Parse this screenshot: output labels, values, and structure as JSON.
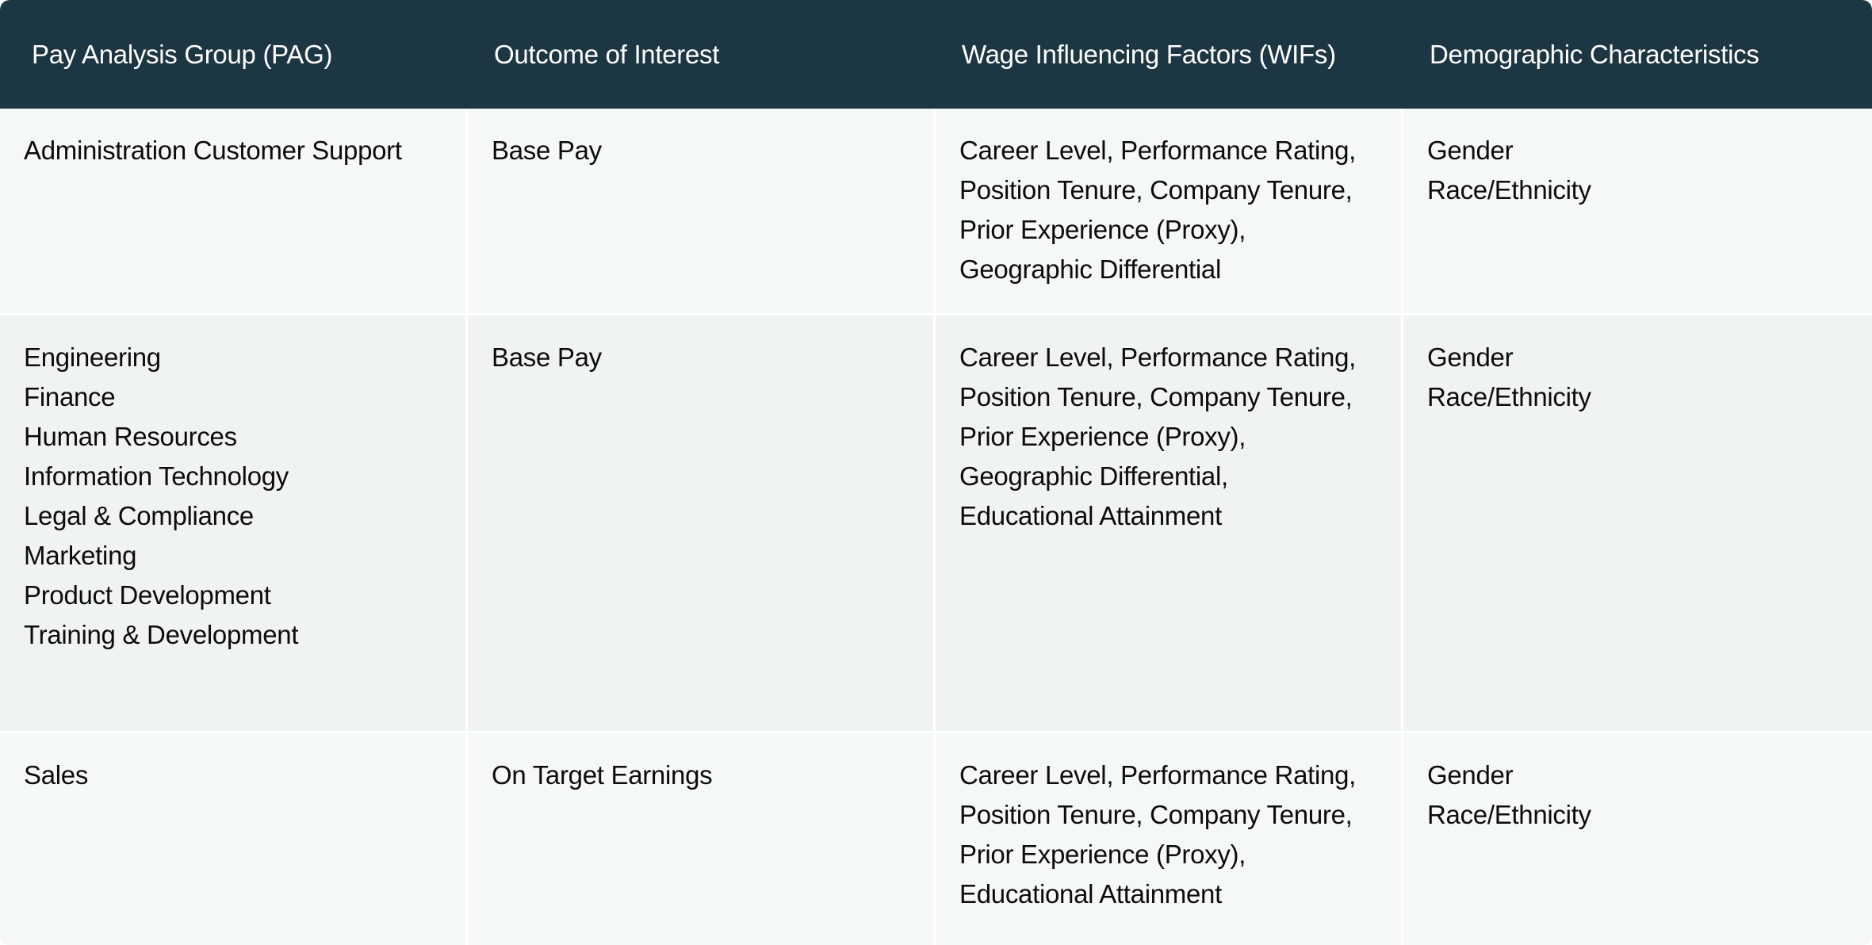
{
  "table": {
    "headers": [
      "Pay Analysis Group (PAG)",
      "Outcome of Interest",
      "Wage Influencing Factors (WIFs)",
      "Demographic Characteristics"
    ],
    "rows": [
      {
        "pag": [
          "Administration Customer Support"
        ],
        "outcome": [
          "Base Pay"
        ],
        "wifs": [
          "Career Level, Performance Rating,",
          "Position Tenure, Company Tenure,",
          "Prior Experience (Proxy),",
          "Geographic Differential"
        ],
        "demographics": [
          "Gender",
          "Race/Ethnicity"
        ]
      },
      {
        "pag": [
          "Engineering",
          "Finance",
          "Human Resources",
          "Information Technology",
          "Legal & Compliance",
          "Marketing",
          "Product Development",
          "Training & Development"
        ],
        "outcome": [
          "Base Pay"
        ],
        "wifs": [
          "Career Level, Performance Rating,",
          "Position Tenure, Company Tenure,",
          "Prior Experience (Proxy),",
          "Geographic Differential,",
          "Educational Attainment"
        ],
        "demographics": [
          "Gender",
          "Race/Ethnicity"
        ]
      },
      {
        "pag": [
          "Sales"
        ],
        "outcome": [
          "On Target Earnings"
        ],
        "wifs": [
          "Career Level, Performance Rating,",
          "Position Tenure, Company Tenure,",
          "Prior Experience (Proxy),",
          "Educational Attainment"
        ],
        "demographics": [
          "Gender",
          "Race/Ethnicity"
        ]
      }
    ]
  },
  "colors": {
    "header_bg": "#1d3643",
    "header_text": "#ffffff",
    "row_light": "#f4f8f9",
    "row_mid": "#eff3f4",
    "body_text": "#0c0c0c"
  }
}
